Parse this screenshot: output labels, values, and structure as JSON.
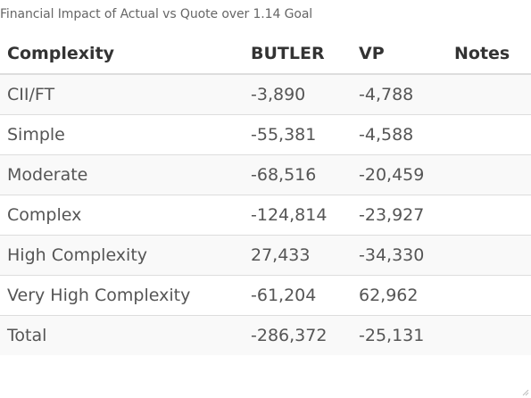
{
  "caption": "Financial Impact of Actual vs Quote over 1.14 Goal",
  "headers": {
    "complexity": "Complexity",
    "butler": "BUTLER",
    "vp": "VP",
    "notes": "Notes"
  },
  "rows": [
    {
      "complexity": "CII/FT",
      "butler": "-3,890",
      "vp": "-4,788",
      "notes": ""
    },
    {
      "complexity": "Simple",
      "butler": "-55,381",
      "vp": "-4,588",
      "notes": ""
    },
    {
      "complexity": "Moderate",
      "butler": "-68,516",
      "vp": "-20,459",
      "notes": ""
    },
    {
      "complexity": "Complex",
      "butler": "-124,814",
      "vp": "-23,927",
      "notes": ""
    },
    {
      "complexity": "High Complexity",
      "butler": "27,433",
      "vp": "-34,330",
      "notes": ""
    },
    {
      "complexity": "Very High Complexity",
      "butler": "-61,204",
      "vp": "62,962",
      "notes": ""
    },
    {
      "complexity": "Total",
      "butler": "-286,372",
      "vp": "-25,131",
      "notes": ""
    }
  ],
  "icons": {
    "resize_grip": "resize-grip-icon"
  }
}
